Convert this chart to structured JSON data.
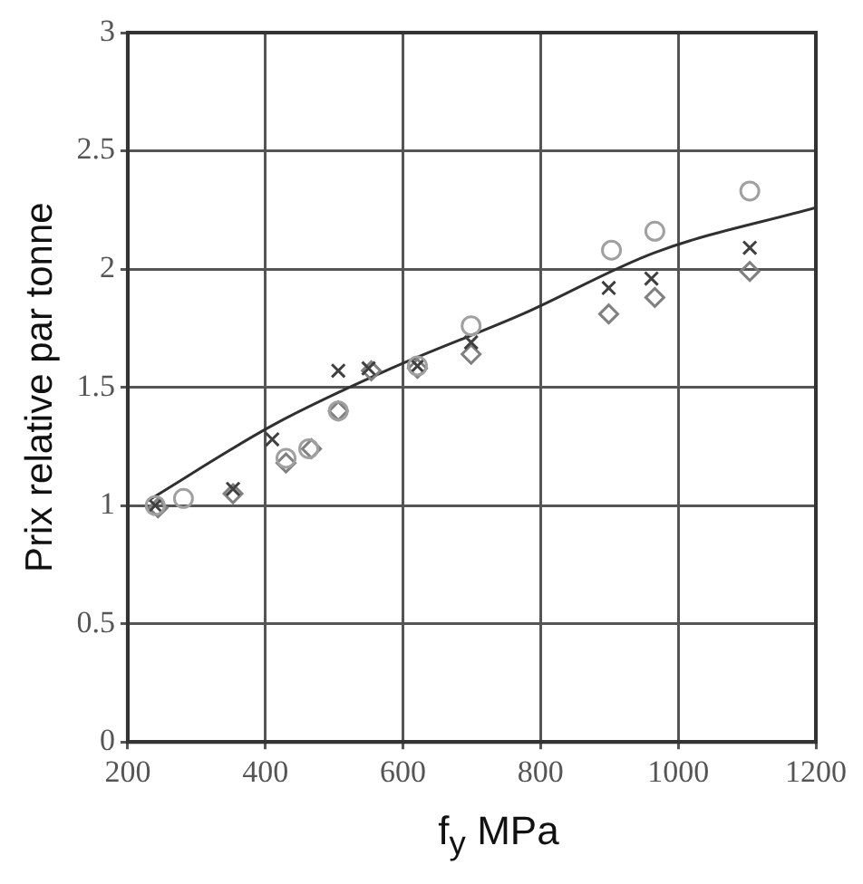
{
  "chart_data": {
    "type": "scatter",
    "xlabel": "f$_{y}$ MPa",
    "ylabel": "Prix relative par tonne",
    "xlim": [
      200,
      1200
    ],
    "xticks": [
      200,
      400,
      600,
      800,
      1000,
      1200
    ],
    "ylim": [
      0,
      3
    ],
    "yticks": [
      0,
      0.5,
      1,
      1.5,
      2,
      2.5,
      3
    ],
    "grid": true,
    "legend": false,
    "series": [
      {
        "marker": "circle",
        "color": "#a0a0a0",
        "x": [
          240,
          281,
          430,
          463,
          506,
          621,
          699,
          903,
          966,
          1104
        ],
        "values": [
          1.0,
          1.03,
          1.2,
          1.24,
          1.4,
          1.59,
          1.76,
          2.08,
          2.16,
          2.33
        ]
      },
      {
        "marker": "cross",
        "color": "#404040",
        "x": [
          240,
          353,
          410,
          506,
          550,
          621,
          699,
          899,
          961,
          1104
        ],
        "values": [
          1.0,
          1.07,
          1.28,
          1.57,
          1.58,
          1.59,
          1.69,
          1.92,
          1.96,
          2.09
        ]
      },
      {
        "marker": "diamond",
        "color": "#808080",
        "x": [
          244,
          353,
          430,
          467,
          506,
          554,
          621,
          699,
          899,
          966,
          1104
        ],
        "values": [
          0.99,
          1.05,
          1.18,
          1.24,
          1.4,
          1.57,
          1.58,
          1.64,
          1.81,
          1.88,
          1.99
        ]
      },
      {
        "type": "line",
        "marker": "none",
        "color": "#303030",
        "x": [
          229,
          411,
          583,
          774,
          966,
          1200
        ],
        "values": [
          1.02,
          1.34,
          1.58,
          1.81,
          2.07,
          2.26
        ]
      }
    ]
  }
}
